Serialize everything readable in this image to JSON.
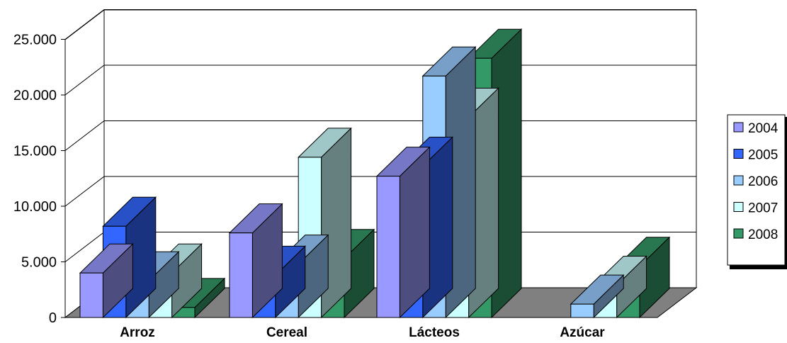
{
  "chart_data": {
    "type": "bar",
    "three_d": true,
    "categories": [
      "Arroz",
      "Cereal",
      "Lácteos",
      "Azúcar"
    ],
    "series": [
      {
        "name": "2004",
        "color": "#9999FF",
        "values": [
          4000,
          7600,
          12700,
          0
        ]
      },
      {
        "name": "2005",
        "color": "#3366FF",
        "values": [
          8200,
          3800,
          13600,
          0
        ]
      },
      {
        "name": "2006",
        "color": "#99CCFF",
        "values": [
          3300,
          4800,
          21700,
          1200
        ]
      },
      {
        "name": "2007",
        "color": "#CCFFFF",
        "values": [
          4000,
          14400,
          18000,
          2900
        ]
      },
      {
        "name": "2008",
        "color": "#339966",
        "values": [
          900,
          5300,
          23300,
          4600
        ]
      }
    ],
    "y_ticks": [
      "0",
      "5.000",
      "10.000",
      "15.000",
      "20.000",
      "25.000"
    ],
    "ylim": [
      0,
      25000
    ],
    "grid": true,
    "legend_position": "right",
    "floor_color": "#808080"
  }
}
